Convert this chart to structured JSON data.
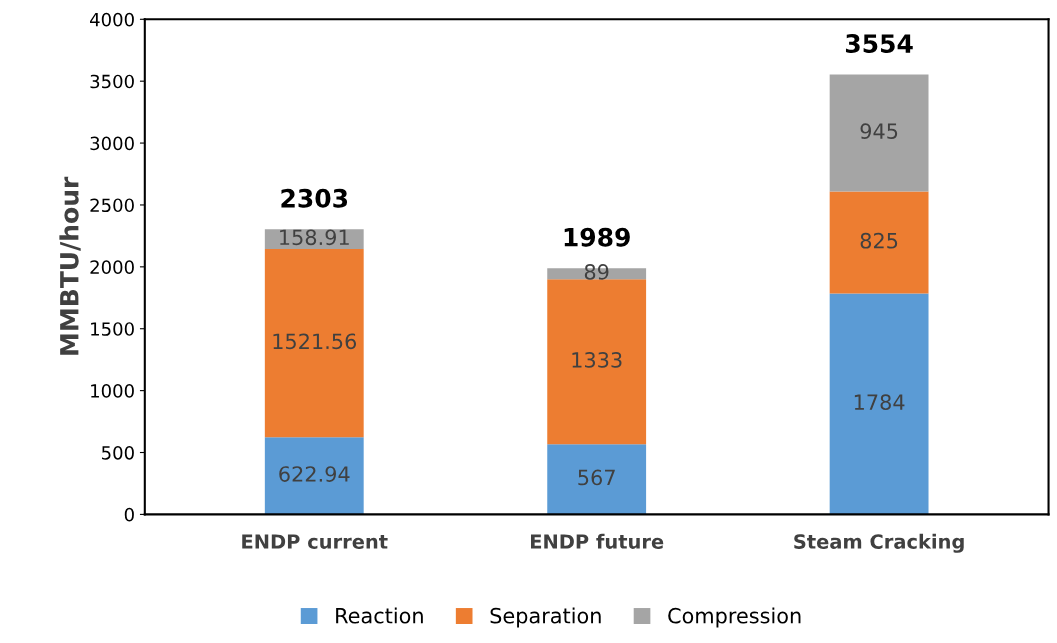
{
  "chart_data": {
    "type": "bar",
    "stacked": true,
    "ylabel": "MMBTU/hour",
    "categories": [
      "ENDP current",
      "ENDP future",
      "Steam Cracking"
    ],
    "series": [
      {
        "name": "Reaction",
        "color": "#5b9bd5",
        "values": [
          622.94,
          567,
          1784
        ]
      },
      {
        "name": "Separation",
        "color": "#ed7d31",
        "values": [
          1521.56,
          1333,
          825
        ]
      },
      {
        "name": "Compression",
        "color": "#a5a5a5",
        "values": [
          158.91,
          89,
          945
        ]
      }
    ],
    "totals": [
      "2303",
      "1989",
      "3554"
    ],
    "data_labels": true,
    "ylim": [
      0,
      4000
    ],
    "yticks": [
      0,
      500,
      1000,
      1500,
      2000,
      2500,
      3000,
      3500,
      4000
    ],
    "grid": false,
    "legend": "bottom"
  }
}
